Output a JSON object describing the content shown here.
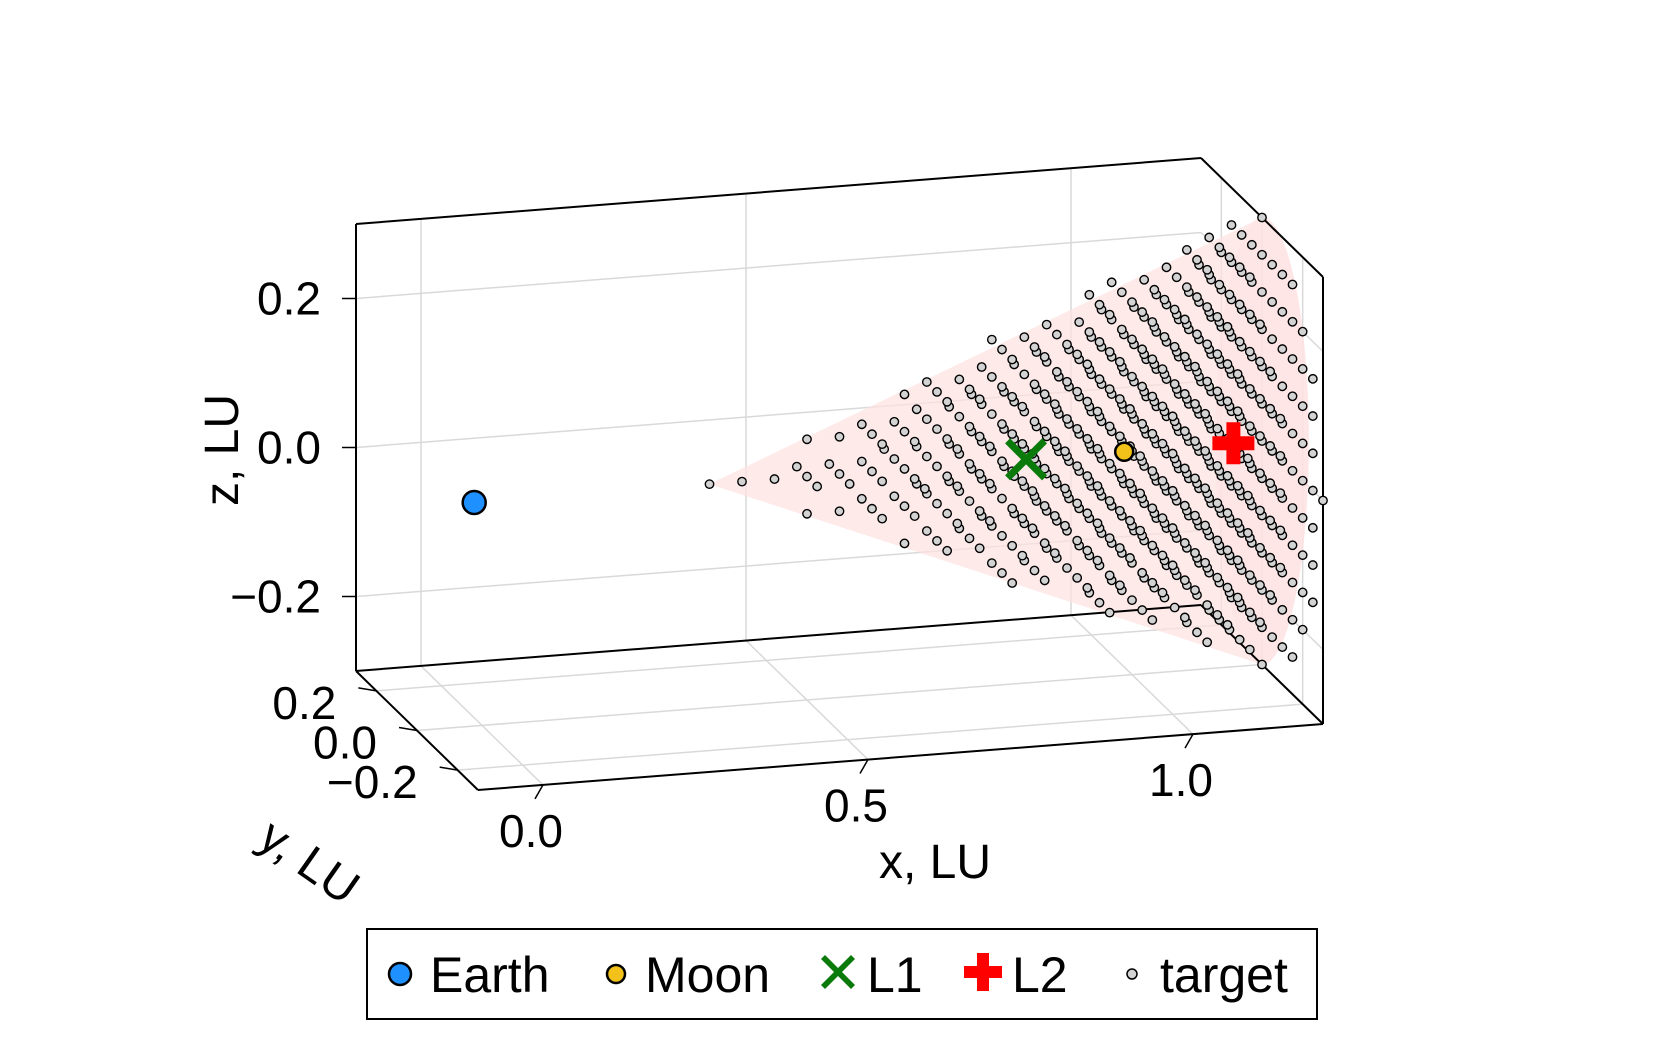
{
  "chart_data": {
    "type": "scatter",
    "dimension": "3d",
    "xlabel": "x, LU",
    "ylabel": "y, LU",
    "zlabel": "z, LU",
    "xlim": [
      -0.1,
      1.2
    ],
    "ylim": [
      -0.3,
      0.3
    ],
    "zlim": [
      -0.3,
      0.3
    ],
    "x_ticks": [
      {
        "value": 0.0,
        "label": "0.0"
      },
      {
        "value": 0.5,
        "label": "0.5"
      },
      {
        "value": 1.0,
        "label": "1.0"
      }
    ],
    "y_ticks": [
      {
        "value": 0.2,
        "label": "0.2"
      },
      {
        "value": 0.0,
        "label": "0.0"
      },
      {
        "value": -0.2,
        "label": "−0.2"
      }
    ],
    "z_ticks": [
      {
        "value": 0.2,
        "label": "0.2"
      },
      {
        "value": 0.0,
        "label": "0.0"
      },
      {
        "value": -0.2,
        "label": "−0.2"
      }
    ],
    "grid": true,
    "legend_position": "bottom",
    "series": [
      {
        "name": "Earth",
        "marker": "circle",
        "color": "#1e90ff",
        "points": [
          {
            "x": -0.012,
            "y": 0.0,
            "z": 0.0
          }
        ]
      },
      {
        "name": "Moon",
        "marker": "circle",
        "color": "#f2c21b",
        "points": [
          {
            "x": 0.988,
            "y": 0.0,
            "z": 0.0
          }
        ]
      },
      {
        "name": "L1",
        "marker": "x",
        "color": "#0a7a0a",
        "points": [
          {
            "x": 0.837,
            "y": 0.0,
            "z": 0.0
          }
        ]
      },
      {
        "name": "L2",
        "marker": "cross",
        "color": "#ff0000",
        "points": [
          {
            "x": 1.156,
            "y": 0.0,
            "z": 0.0
          }
        ]
      },
      {
        "name": "target",
        "marker": "circle",
        "color": "#d3d3d3",
        "points": "cone grid: x 0.35–1.2 step 0.05, y,z on ±r(x) grid step 0.05, r(x)=0.3·(x−0.35)/0.85"
      }
    ],
    "cone": {
      "apex_x": 0.35,
      "base_x": 1.2,
      "base_radius": 0.3,
      "fill": "#ffe1e1",
      "fill_opacity": 0.7
    }
  },
  "legend": {
    "items": [
      {
        "label": "Earth",
        "marker": "circle",
        "color": "#1e90ff"
      },
      {
        "label": "Moon",
        "marker": "circle",
        "color": "#f2c21b"
      },
      {
        "label": "L1",
        "marker": "x",
        "color": "#0a7a0a"
      },
      {
        "label": "L2",
        "marker": "cross",
        "color": "#ff0000"
      },
      {
        "label": "target",
        "marker": "small-circle",
        "color": "#d3d3d3"
      }
    ]
  }
}
